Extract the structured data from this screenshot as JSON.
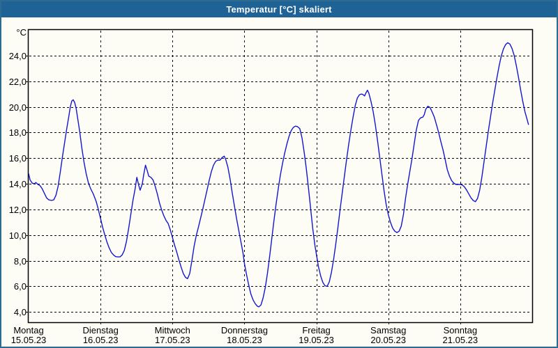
{
  "window": {
    "title": "Temperatur [°C] skaliert"
  },
  "colors": {
    "titlebar_bg": "#1f6296",
    "titlebar_text": "#ffffff",
    "window_border": "#2e6b90",
    "plot_bg": "#fdfdf6",
    "grid": "#000000",
    "axis_frame": "#000000",
    "line": "#1515d0"
  },
  "chart_data": {
    "type": "line",
    "title": "Temperatur [°C] skaliert",
    "ylabel": "°C",
    "xlabel": "",
    "grid": "dashed",
    "legend": "none",
    "ylim": [
      3.2,
      26.0
    ],
    "xlim_days": [
      0,
      7
    ],
    "y_ticks": {
      "values": [
        4,
        6,
        8,
        10,
        12,
        14,
        16,
        18,
        20,
        22,
        24
      ],
      "labels": [
        "4,0",
        "6,0",
        "8,0",
        "10,0",
        "12,0",
        "14,0",
        "16,0",
        "18,0",
        "20,0",
        "22,0",
        "24,0"
      ]
    },
    "days": [
      {
        "name": "Montag",
        "date": "15.05.23"
      },
      {
        "name": "Dienstag",
        "date": "16.05.23"
      },
      {
        "name": "Mittwoch",
        "date": "17.05.23"
      },
      {
        "name": "Donnerstag",
        "date": "18.05.23"
      },
      {
        "name": "Freitag",
        "date": "19.05.23"
      },
      {
        "name": "Samstag",
        "date": "20.05.23"
      },
      {
        "name": "Sonntag",
        "date": "21.05.23"
      }
    ],
    "series": [
      {
        "name": "Temperatur",
        "color": "#1515d0",
        "points": [
          [
            0.0,
            14.8
          ],
          [
            0.02,
            14.3
          ],
          [
            0.05,
            14.05
          ],
          [
            0.08,
            14.0
          ],
          [
            0.1,
            14.1
          ],
          [
            0.13,
            13.95
          ],
          [
            0.16,
            13.85
          ],
          [
            0.19,
            13.6
          ],
          [
            0.22,
            13.25
          ],
          [
            0.25,
            12.9
          ],
          [
            0.28,
            12.75
          ],
          [
            0.32,
            12.7
          ],
          [
            0.35,
            12.75
          ],
          [
            0.38,
            13.1
          ],
          [
            0.41,
            13.8
          ],
          [
            0.44,
            14.9
          ],
          [
            0.47,
            16.1
          ],
          [
            0.5,
            17.2
          ],
          [
            0.53,
            18.3
          ],
          [
            0.56,
            19.3
          ],
          [
            0.58,
            20.0
          ],
          [
            0.6,
            20.45
          ],
          [
            0.62,
            20.55
          ],
          [
            0.64,
            20.35
          ],
          [
            0.66,
            19.9
          ],
          [
            0.68,
            19.2
          ],
          [
            0.71,
            18.1
          ],
          [
            0.74,
            16.8
          ],
          [
            0.77,
            15.7
          ],
          [
            0.8,
            14.8
          ],
          [
            0.83,
            14.1
          ],
          [
            0.86,
            13.65
          ],
          [
            0.9,
            13.2
          ],
          [
            0.94,
            12.6
          ],
          [
            0.97,
            12.0
          ],
          [
            1.0,
            11.3
          ],
          [
            1.03,
            10.6
          ],
          [
            1.06,
            10.0
          ],
          [
            1.09,
            9.45
          ],
          [
            1.12,
            9.0
          ],
          [
            1.15,
            8.65
          ],
          [
            1.18,
            8.45
          ],
          [
            1.21,
            8.32
          ],
          [
            1.24,
            8.3
          ],
          [
            1.27,
            8.3
          ],
          [
            1.3,
            8.45
          ],
          [
            1.33,
            8.8
          ],
          [
            1.36,
            9.5
          ],
          [
            1.39,
            10.5
          ],
          [
            1.42,
            11.6
          ],
          [
            1.45,
            12.7
          ],
          [
            1.48,
            13.6
          ],
          [
            1.505,
            14.5
          ],
          [
            1.53,
            13.9
          ],
          [
            1.55,
            13.5
          ],
          [
            1.58,
            14.0
          ],
          [
            1.6,
            14.7
          ],
          [
            1.625,
            15.45
          ],
          [
            1.65,
            15.0
          ],
          [
            1.67,
            14.6
          ],
          [
            1.7,
            14.5
          ],
          [
            1.73,
            14.3
          ],
          [
            1.76,
            13.8
          ],
          [
            1.79,
            13.2
          ],
          [
            1.82,
            12.5
          ],
          [
            1.85,
            11.95
          ],
          [
            1.88,
            11.5
          ],
          [
            1.91,
            11.15
          ],
          [
            1.94,
            10.9
          ],
          [
            1.97,
            10.4
          ],
          [
            2.0,
            9.8
          ],
          [
            2.03,
            9.2
          ],
          [
            2.06,
            8.65
          ],
          [
            2.09,
            8.05
          ],
          [
            2.12,
            7.5
          ],
          [
            2.15,
            7.0
          ],
          [
            2.18,
            6.7
          ],
          [
            2.21,
            6.6
          ],
          [
            2.24,
            7.0
          ],
          [
            2.27,
            8.0
          ],
          [
            2.3,
            9.1
          ],
          [
            2.33,
            9.95
          ],
          [
            2.36,
            10.6
          ],
          [
            2.39,
            11.3
          ],
          [
            2.42,
            12.0
          ],
          [
            2.45,
            12.75
          ],
          [
            2.48,
            13.5
          ],
          [
            2.51,
            14.25
          ],
          [
            2.54,
            14.95
          ],
          [
            2.57,
            15.45
          ],
          [
            2.6,
            15.75
          ],
          [
            2.63,
            15.85
          ],
          [
            2.66,
            15.85
          ],
          [
            2.69,
            16.05
          ],
          [
            2.72,
            16.15
          ],
          [
            2.74,
            15.9
          ],
          [
            2.77,
            15.3
          ],
          [
            2.8,
            14.4
          ],
          [
            2.83,
            13.3
          ],
          [
            2.86,
            12.3
          ],
          [
            2.89,
            11.3
          ],
          [
            2.92,
            10.4
          ],
          [
            2.95,
            9.5
          ],
          [
            2.98,
            8.6
          ],
          [
            3.0,
            7.8
          ],
          [
            3.03,
            6.9
          ],
          [
            3.06,
            6.1
          ],
          [
            3.09,
            5.4
          ],
          [
            3.12,
            4.95
          ],
          [
            3.15,
            4.65
          ],
          [
            3.18,
            4.45
          ],
          [
            3.2,
            4.4
          ],
          [
            3.23,
            4.55
          ],
          [
            3.26,
            5.1
          ],
          [
            3.29,
            5.9
          ],
          [
            3.32,
            7.0
          ],
          [
            3.35,
            8.3
          ],
          [
            3.38,
            9.7
          ],
          [
            3.41,
            11.1
          ],
          [
            3.44,
            12.4
          ],
          [
            3.47,
            13.6
          ],
          [
            3.5,
            14.7
          ],
          [
            3.53,
            15.6
          ],
          [
            3.56,
            16.4
          ],
          [
            3.59,
            17.1
          ],
          [
            3.62,
            17.7
          ],
          [
            3.65,
            18.15
          ],
          [
            3.68,
            18.4
          ],
          [
            3.71,
            18.5
          ],
          [
            3.74,
            18.45
          ],
          [
            3.77,
            18.3
          ],
          [
            3.8,
            17.6
          ],
          [
            3.83,
            16.5
          ],
          [
            3.86,
            15.2
          ],
          [
            3.89,
            13.7
          ],
          [
            3.92,
            12.1
          ],
          [
            3.95,
            10.5
          ],
          [
            3.98,
            9.2
          ],
          [
            4.0,
            8.5
          ],
          [
            4.03,
            7.5
          ],
          [
            4.06,
            6.8
          ],
          [
            4.09,
            6.3
          ],
          [
            4.12,
            6.05
          ],
          [
            4.15,
            6.0
          ],
          [
            4.18,
            6.35
          ],
          [
            4.21,
            7.1
          ],
          [
            4.24,
            8.1
          ],
          [
            4.27,
            9.3
          ],
          [
            4.3,
            10.6
          ],
          [
            4.33,
            12.0
          ],
          [
            4.36,
            13.3
          ],
          [
            4.39,
            14.6
          ],
          [
            4.42,
            15.9
          ],
          [
            4.45,
            17.1
          ],
          [
            4.48,
            18.2
          ],
          [
            4.51,
            19.2
          ],
          [
            4.54,
            20.1
          ],
          [
            4.57,
            20.7
          ],
          [
            4.6,
            20.95
          ],
          [
            4.63,
            21.0
          ],
          [
            4.65,
            20.95
          ],
          [
            4.67,
            20.85
          ],
          [
            4.69,
            21.1
          ],
          [
            4.71,
            21.3
          ],
          [
            4.73,
            21.05
          ],
          [
            4.76,
            20.4
          ],
          [
            4.79,
            19.6
          ],
          [
            4.82,
            18.6
          ],
          [
            4.85,
            17.4
          ],
          [
            4.88,
            16.1
          ],
          [
            4.91,
            14.8
          ],
          [
            4.94,
            13.5
          ],
          [
            4.97,
            12.4
          ],
          [
            5.0,
            11.6
          ],
          [
            5.03,
            11.0
          ],
          [
            5.06,
            10.55
          ],
          [
            5.09,
            10.3
          ],
          [
            5.12,
            10.2
          ],
          [
            5.15,
            10.3
          ],
          [
            5.18,
            10.7
          ],
          [
            5.21,
            11.6
          ],
          [
            5.24,
            12.9
          ],
          [
            5.27,
            14.0
          ],
          [
            5.3,
            15.0
          ],
          [
            5.33,
            16.0
          ],
          [
            5.36,
            17.1
          ],
          [
            5.39,
            18.2
          ],
          [
            5.42,
            18.95
          ],
          [
            5.45,
            19.15
          ],
          [
            5.48,
            19.2
          ],
          [
            5.5,
            19.4
          ],
          [
            5.52,
            19.8
          ],
          [
            5.55,
            20.05
          ],
          [
            5.58,
            19.95
          ],
          [
            5.61,
            19.6
          ],
          [
            5.64,
            19.2
          ],
          [
            5.67,
            18.6
          ],
          [
            5.7,
            18.0
          ],
          [
            5.73,
            17.3
          ],
          [
            5.76,
            16.65
          ],
          [
            5.79,
            15.9
          ],
          [
            5.82,
            15.1
          ],
          [
            5.85,
            14.6
          ],
          [
            5.88,
            14.25
          ],
          [
            5.91,
            14.05
          ],
          [
            5.94,
            13.95
          ],
          [
            5.97,
            13.95
          ],
          [
            6.0,
            13.95
          ],
          [
            6.03,
            13.9
          ],
          [
            6.06,
            13.75
          ],
          [
            6.09,
            13.5
          ],
          [
            6.12,
            13.2
          ],
          [
            6.15,
            12.9
          ],
          [
            6.18,
            12.7
          ],
          [
            6.21,
            12.6
          ],
          [
            6.24,
            12.85
          ],
          [
            6.27,
            13.5
          ],
          [
            6.3,
            14.5
          ],
          [
            6.33,
            15.7
          ],
          [
            6.36,
            16.9
          ],
          [
            6.39,
            18.1
          ],
          [
            6.42,
            19.2
          ],
          [
            6.45,
            20.3
          ],
          [
            6.48,
            21.3
          ],
          [
            6.51,
            22.3
          ],
          [
            6.54,
            23.2
          ],
          [
            6.57,
            23.95
          ],
          [
            6.6,
            24.5
          ],
          [
            6.63,
            24.85
          ],
          [
            6.66,
            25.0
          ],
          [
            6.69,
            24.9
          ],
          [
            6.72,
            24.55
          ],
          [
            6.75,
            24.0
          ],
          [
            6.78,
            23.2
          ],
          [
            6.81,
            22.3
          ],
          [
            6.84,
            21.3
          ],
          [
            6.87,
            20.4
          ],
          [
            6.9,
            19.6
          ],
          [
            6.93,
            19.0
          ],
          [
            6.95,
            18.6
          ]
        ]
      }
    ]
  }
}
